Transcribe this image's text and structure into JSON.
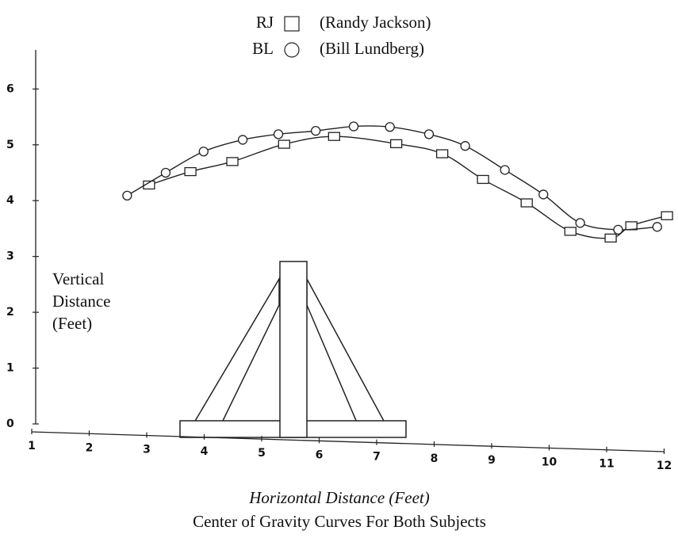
{
  "chart_data": {
    "type": "line",
    "title": "Center of Gravity Curves For Both Subjects",
    "xlabel": "Horizontal Distance (Feet)",
    "ylabel": "Vertical Distance (Feet)",
    "xlim": [
      1,
      12.2
    ],
    "ylim": [
      0,
      6.7
    ],
    "xticks": [
      1,
      2,
      3,
      4,
      5,
      6,
      7,
      8,
      9,
      10,
      11,
      12
    ],
    "yticks": [
      0,
      1,
      2,
      3,
      4,
      5,
      6
    ],
    "series": [
      {
        "name": "RJ",
        "full_name": "(Randy Jackson)",
        "marker": "square",
        "color": "#222222",
        "x": [
          3.04,
          3.76,
          4.49,
          5.39,
          6.26,
          7.34,
          8.14,
          8.85,
          9.61,
          10.37,
          11.07,
          11.43,
          12.05
        ],
        "values": [
          4.28,
          4.52,
          4.7,
          5.01,
          5.15,
          5.02,
          4.84,
          4.38,
          3.96,
          3.45,
          3.33,
          3.55,
          3.73
        ]
      },
      {
        "name": "BL",
        "full_name": "(Bill Lundberg)",
        "marker": "circle",
        "color": "#222222",
        "x": [
          2.66,
          3.33,
          3.99,
          4.67,
          5.29,
          5.94,
          6.6,
          7.23,
          7.91,
          8.54,
          9.23,
          9.9,
          10.54,
          11.2,
          11.88
        ],
        "values": [
          4.09,
          4.5,
          4.88,
          5.09,
          5.19,
          5.25,
          5.33,
          5.32,
          5.19,
          4.98,
          4.55,
          4.11,
          3.6,
          3.48,
          3.53
        ]
      }
    ]
  }
}
